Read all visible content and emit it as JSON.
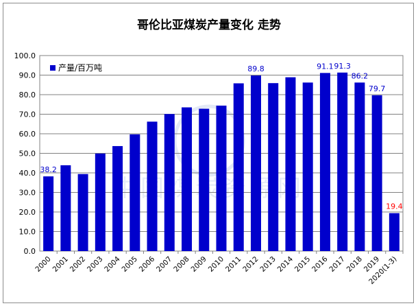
{
  "chart_data": {
    "type": "bar",
    "title": "哥伦比亚煤炭产量变化 走势",
    "categories": [
      "2000",
      "2001",
      "2002",
      "2003",
      "2004",
      "2005",
      "2006",
      "2007",
      "2008",
      "2009",
      "2010",
      "2011",
      "2012",
      "2013",
      "2014",
      "2015",
      "2016",
      "2017",
      "2018",
      "2019",
      "2020(1-3)"
    ],
    "series": [
      {
        "name": "产量/百万吨",
        "values": [
          38.2,
          43.9,
          39.4,
          49.9,
          53.7,
          59.7,
          66.2,
          70.1,
          73.5,
          72.8,
          74.4,
          85.8,
          89.8,
          85.9,
          88.9,
          86.2,
          91.1,
          91.3,
          86.2,
          79.7,
          19.4
        ],
        "color": "#0000cc"
      }
    ],
    "data_labels": [
      {
        "category": "2000",
        "text": "38.2",
        "color": "#0000cc"
      },
      {
        "category": "2012",
        "text": "89.8",
        "color": "#0000cc"
      },
      {
        "category": "2016",
        "text": "91.1",
        "color": "#0000cc"
      },
      {
        "category": "2017",
        "text": "91.3",
        "color": "#0000cc"
      },
      {
        "category": "2018",
        "text": "86.2",
        "color": "#0000cc"
      },
      {
        "category": "2019",
        "text": "79.7",
        "color": "#0000cc"
      },
      {
        "category": "2020(1-3)",
        "text": "19.4",
        "color": "#ff0000"
      }
    ],
    "ylim": [
      0,
      100
    ],
    "ytick_labels": [
      "0.0",
      "10.0",
      "20.0",
      "30.0",
      "40.0",
      "50.0",
      "60.0",
      "70.0",
      "80.0",
      "90.0",
      "100.0"
    ],
    "grid": true,
    "legend_position": "top-left",
    "xlabel": "",
    "ylabel": ""
  },
  "watermark": "中国煤炭资源网"
}
